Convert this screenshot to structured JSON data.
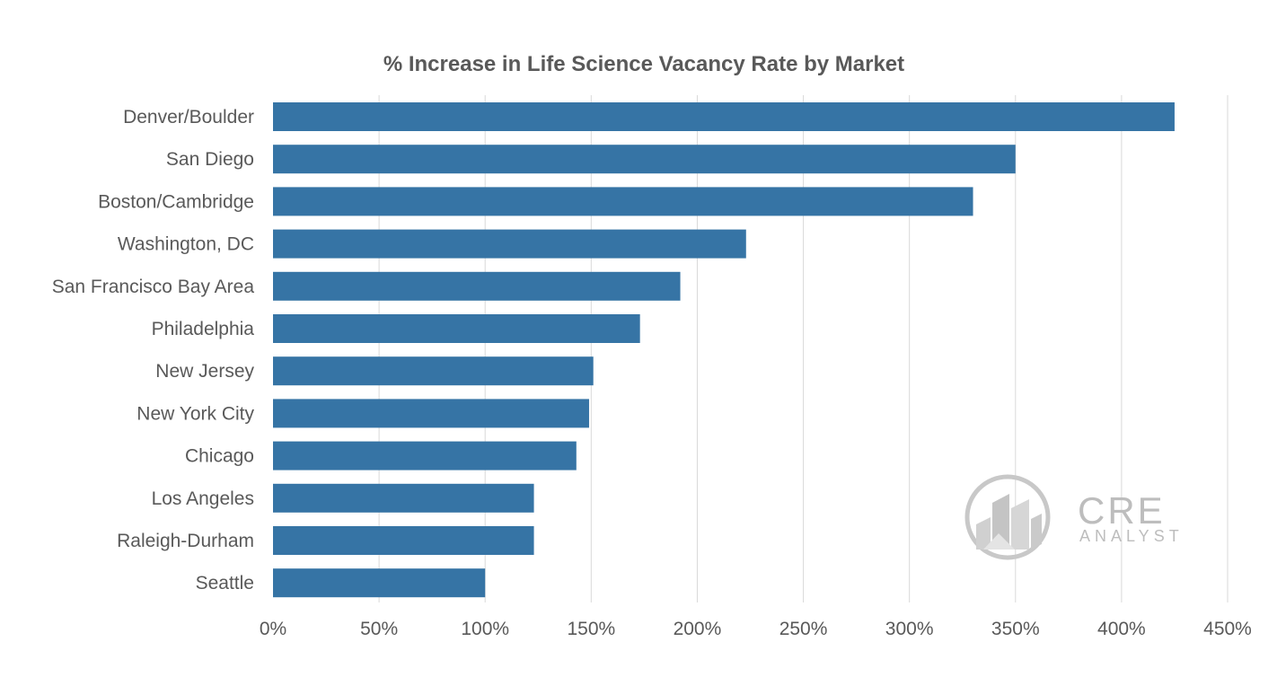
{
  "chart_data": {
    "type": "bar",
    "orientation": "horizontal",
    "title": "% Increase in Life Science Vacancy Rate by Market",
    "xlabel": "",
    "ylabel": "",
    "categories": [
      "Denver/Boulder",
      "San Diego",
      "Boston/Cambridge",
      "Washington, DC",
      "San Francisco Bay Area",
      "Philadelphia",
      "New Jersey",
      "New York City",
      "Chicago",
      "Los Angeles",
      "Raleigh-Durham",
      "Seattle"
    ],
    "values": [
      425,
      350,
      330,
      223,
      192,
      173,
      151,
      149,
      143,
      123,
      123,
      100
    ],
    "xlim": [
      0,
      450
    ],
    "x_ticks": [
      0,
      50,
      100,
      150,
      200,
      250,
      300,
      350,
      400,
      450
    ],
    "x_tick_labels": [
      "0%",
      "50%",
      "100%",
      "150%",
      "200%",
      "250%",
      "300%",
      "350%",
      "400%",
      "450%"
    ],
    "grid": "vertical",
    "bar_color": "#3674a5"
  },
  "watermark": {
    "brand": "CRE",
    "subtitle": "ANALYST",
    "icon": "city-buildings-logo-icon"
  }
}
